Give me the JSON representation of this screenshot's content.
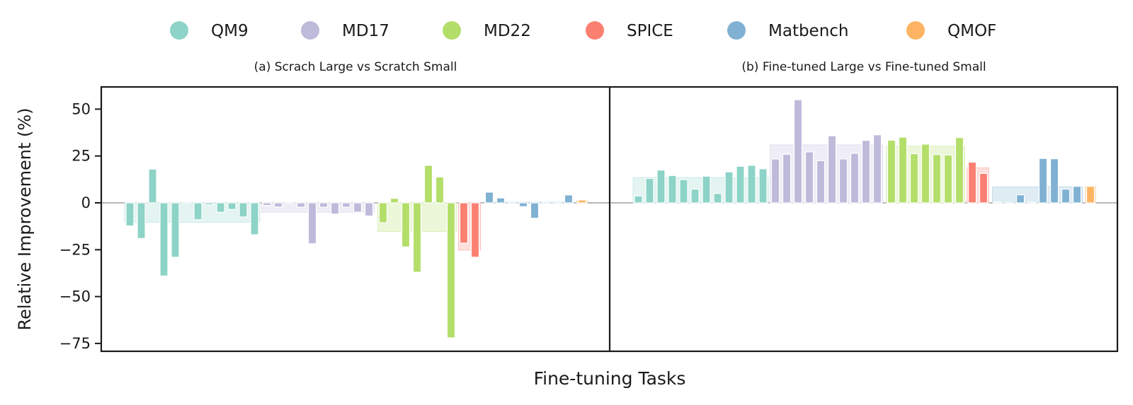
{
  "chart_data": {
    "type": "bar",
    "xlabel": "Fine-tuning Tasks",
    "ylabel": "Relative Improvement (%)",
    "ylim": [
      -80,
      62
    ],
    "yticks": [
      50,
      25,
      0,
      -25,
      -50,
      -75
    ],
    "ytick_labels": [
      "50",
      "25",
      "0",
      "−25",
      "−50",
      "−75"
    ],
    "grid": false,
    "legend_position": "top-center",
    "legend": [
      {
        "name": "QM9",
        "color": "#8dd3c7"
      },
      {
        "name": "MD17",
        "color": "#bebada"
      },
      {
        "name": "MD22",
        "color": "#b3de69"
      },
      {
        "name": "SPICE",
        "color": "#fb8072"
      },
      {
        "name": "Matbench",
        "color": "#80b1d3"
      },
      {
        "name": "QMOF",
        "color": "#fdb462"
      }
    ],
    "group_means_shown": true,
    "panels": [
      {
        "subtitle": "(a) Scrach Large vs Scratch Small",
        "groups": [
          {
            "name": "QM9",
            "values": [
              -12.3,
              -19,
              18,
              -39,
              -29,
              0,
              -9,
              -1,
              -5,
              -3.5,
              -7.5,
              -17
            ]
          },
          {
            "name": "MD17",
            "values": [
              -1.4,
              -2.2,
              0,
              -2.3,
              -21.8,
              -2.3,
              -6,
              -2.3,
              -4.9,
              -7
            ]
          },
          {
            "name": "MD22",
            "values": [
              -10.6,
              2.4,
              -23.5,
              -37,
              20,
              13.8,
              -72
            ]
          },
          {
            "name": "SPICE",
            "values": [
              -21.5,
              -29
            ]
          },
          {
            "name": "Matbench",
            "values": [
              5.7,
              2.6,
              0,
              -2,
              -8.2,
              0,
              0,
              4.2
            ]
          },
          {
            "name": "QMOF",
            "values": [
              1.5
            ]
          }
        ]
      },
      {
        "subtitle": "(b) Fine-tuned Large vs Fine-tuned Small",
        "groups": [
          {
            "name": "QM9",
            "values": [
              3.7,
              13,
              17.5,
              14.6,
              12.4,
              7.3,
              14.2,
              5,
              16.5,
              19.5,
              20,
              18.2
            ]
          },
          {
            "name": "MD17",
            "values": [
              23.4,
              25.9,
              55,
              27.2,
              22.5,
              35.8,
              23.4,
              26.4,
              33.3,
              36.3
            ]
          },
          {
            "name": "MD22",
            "values": [
              33.4,
              35,
              26.2,
              31.3,
              25.8,
              25.5,
              34.8
            ]
          },
          {
            "name": "SPICE",
            "values": [
              21.7,
              15.7
            ]
          },
          {
            "name": "Matbench",
            "values": [
              0.5,
              0,
              4.3,
              0.3,
              23.7,
              23.5,
              7.3,
              8.8
            ]
          },
          {
            "name": "QMOF",
            "values": [
              8.8
            ]
          }
        ]
      }
    ]
  }
}
